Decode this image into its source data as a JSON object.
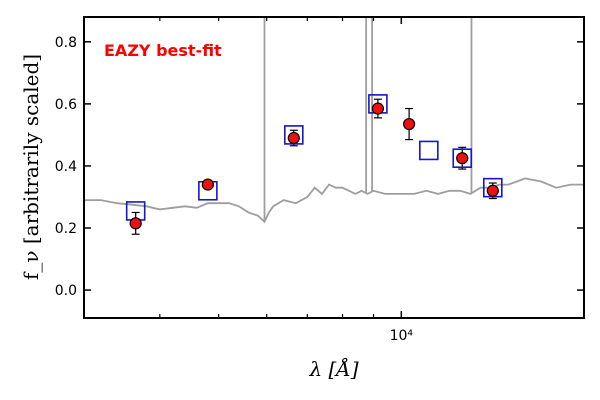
{
  "chart_data": {
    "type": "scatter",
    "annotation": "EAZY best-fit",
    "xlabel": "λ [Å]",
    "ylabel": "f_ν [arbitrarily scaled]",
    "xscale": "log",
    "xlim": [
      3000,
      20000
    ],
    "ylim": [
      -0.09,
      0.88
    ],
    "yticks": [
      0.0,
      0.2,
      0.4,
      0.6,
      0.8
    ],
    "ytick_labels": [
      "0.0",
      "0.2",
      "0.4",
      "0.6",
      "0.8"
    ],
    "xticks_major": [
      10000
    ],
    "xtick_major_labels": [
      "10⁴"
    ],
    "xticks_minor": [
      4000,
      5000,
      6000,
      7000,
      8000,
      9000,
      20000
    ],
    "colors": {
      "model": "#9e9e9e",
      "model_box": "#1515cc",
      "observed": "#ee1111",
      "annotation": "#ff0000"
    },
    "series": [
      {
        "kind": "model_spectrum",
        "x": [
          3000,
          3200,
          3400,
          3600,
          3800,
          4000,
          4200,
          4400,
          4600,
          4800,
          5000,
          5200,
          5400,
          5600,
          5800,
          5950,
          6050,
          6150,
          6400,
          6700,
          7000,
          7200,
          7400,
          7600,
          7800,
          8000,
          8200,
          8400,
          8600,
          8800,
          9000,
          9400,
          10000,
          10500,
          11000,
          11500,
          12000,
          12500,
          13000,
          13500,
          14000,
          14500,
          15000,
          15500,
          16000,
          17000,
          18000,
          19000,
          20000
        ],
        "y": [
          0.29,
          0.29,
          0.28,
          0.275,
          0.27,
          0.26,
          0.265,
          0.27,
          0.265,
          0.28,
          0.28,
          0.28,
          0.27,
          0.25,
          0.24,
          0.22,
          0.25,
          0.27,
          0.29,
          0.28,
          0.3,
          0.33,
          0.31,
          0.34,
          0.33,
          0.33,
          0.32,
          0.31,
          0.32,
          0.31,
          0.32,
          0.31,
          0.31,
          0.31,
          0.32,
          0.31,
          0.32,
          0.32,
          0.31,
          0.33,
          0.33,
          0.34,
          0.34,
          0.35,
          0.36,
          0.35,
          0.33,
          0.34,
          0.34
        ],
        "emission_lines": [
          {
            "x": 5950,
            "y": 0.88
          },
          {
            "x": 8750,
            "y": 0.88
          },
          {
            "x": 8950,
            "y": 0.88
          },
          {
            "x": 13050,
            "y": 0.88
          }
        ]
      },
      {
        "kind": "model_photometry",
        "x": [
          3650,
          4800,
          6650,
          9150,
          11100,
          12600,
          14150
        ],
        "y": [
          0.255,
          0.32,
          0.5,
          0.6,
          0.45,
          0.425,
          0.33
        ]
      },
      {
        "kind": "observed_photometry",
        "x": [
          3650,
          4800,
          6650,
          9150,
          10300,
          12600,
          14150
        ],
        "y": [
          0.215,
          0.34,
          0.49,
          0.585,
          0.535,
          0.425,
          0.32
        ],
        "yerr": [
          0.035,
          0.01,
          0.025,
          0.03,
          0.05,
          0.035,
          0.025
        ]
      }
    ]
  }
}
